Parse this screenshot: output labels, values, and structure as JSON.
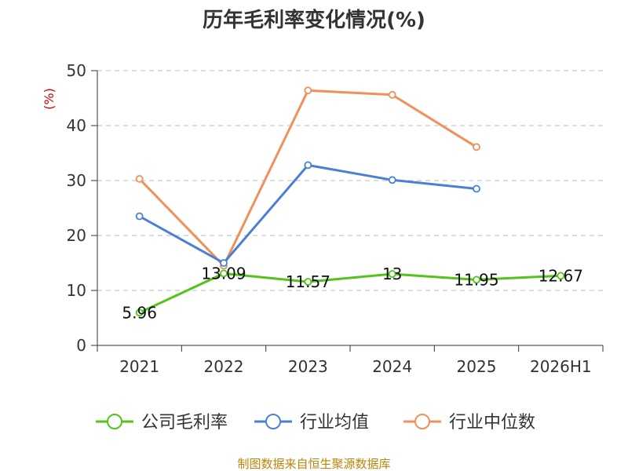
{
  "chart_data": {
    "type": "line",
    "title": "历年毛利率变化情况(%)",
    "ylabel": "(%)",
    "categories": [
      "2021",
      "2022",
      "2023",
      "2024",
      "2025",
      "2026H1"
    ],
    "ylim": [
      0,
      50
    ],
    "yticks": [
      0,
      10,
      20,
      30,
      40,
      50
    ],
    "grid": true,
    "legend_position": "bottom",
    "series": [
      {
        "name": "公司毛利率",
        "color": "#52c41a",
        "values": [
          5.96,
          13.09,
          11.57,
          13,
          11.95,
          12.67
        ],
        "labels": [
          "5.96",
          "13.09",
          "11.57",
          "13",
          "11.95",
          "12.67"
        ]
      },
      {
        "name": "行业均值",
        "color": "#4a7fd6",
        "values": [
          23.5,
          15.0,
          32.8,
          30.1,
          28.5,
          null
        ]
      },
      {
        "name": "行业中位数",
        "color": "#f0905a",
        "values": [
          30.3,
          14.5,
          46.4,
          45.6,
          36.1,
          null
        ]
      }
    ],
    "source": "制图数据来自恒生聚源数据库"
  }
}
